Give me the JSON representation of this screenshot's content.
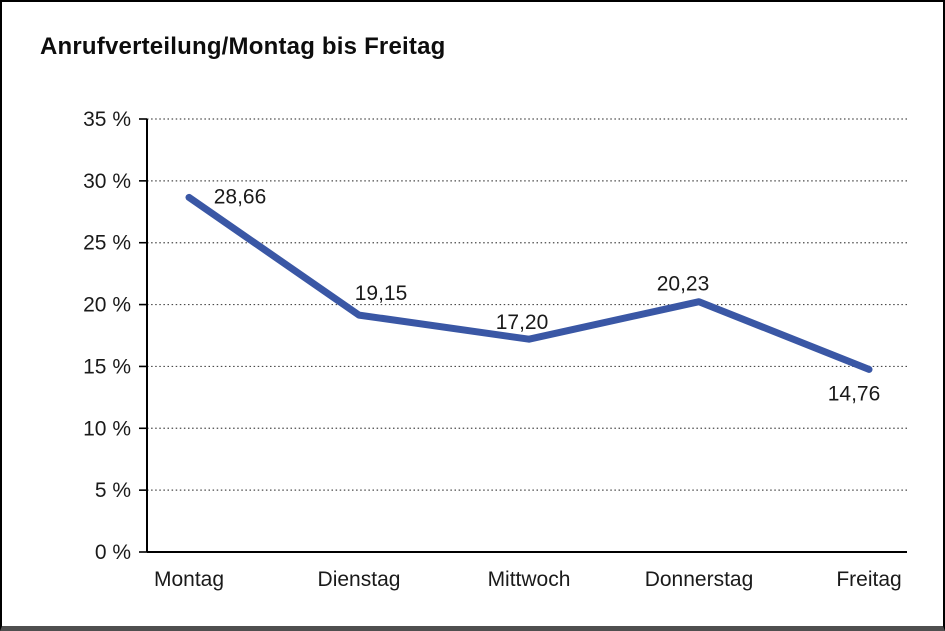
{
  "title": "Anrufverteilung/Montag bis Freitag",
  "chart_data": {
    "type": "line",
    "title": "Anrufverteilung/Montag bis Freitag",
    "categories": [
      "Montag",
      "Dienstag",
      "Mittwoch",
      "Donnerstag",
      "Freitag"
    ],
    "values": [
      28.66,
      19.15,
      17.2,
      20.23,
      14.76
    ],
    "value_labels": [
      "28,66",
      "19,15",
      "17,20",
      "20,23",
      "14,76"
    ],
    "series_name": "Anrufverteilung",
    "xlabel": "",
    "ylabel": "",
    "ylim": [
      0,
      35
    ],
    "ytick_step": 5,
    "ytick_labels": [
      "0 %",
      "5 %",
      "10 %",
      "15 %",
      "20 %",
      "25 %",
      "30 %",
      "35 %"
    ],
    "grid": "horizontal-dotted",
    "legend": "none",
    "line_color": "#3A57A5"
  },
  "colors": {
    "line": "#3A57A5",
    "text": "#1a1a1a",
    "grid": "#4a4a4a",
    "axis": "#000000",
    "frame_border": "#000000",
    "frame_bottom_edge": "#4f4f4f",
    "background": "#ffffff"
  }
}
